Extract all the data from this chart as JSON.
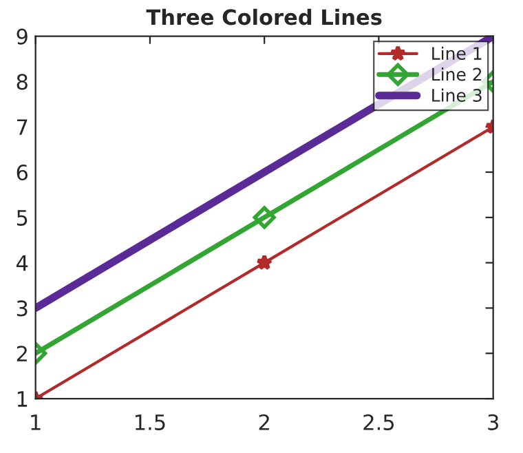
{
  "chart_data": {
    "type": "line",
    "title": "Three Colored Lines",
    "x": [
      1,
      2,
      3
    ],
    "series": [
      {
        "name": "Line 1",
        "color": "#b22a2a",
        "values": [
          1,
          4,
          7
        ],
        "marker": "star"
      },
      {
        "name": "Line 2",
        "color": "#33a533",
        "values": [
          2,
          5,
          8
        ],
        "marker": "diamond"
      },
      {
        "name": "Line 3",
        "color": "#5a2a96",
        "values": [
          3,
          6,
          9
        ],
        "marker": "none"
      }
    ],
    "xlim": [
      1,
      3
    ],
    "xticks": [
      1,
      1.5,
      2,
      2.5,
      3
    ],
    "ylim": [
      1,
      9
    ],
    "yticks": [
      1,
      2,
      3,
      4,
      5,
      6,
      7,
      8,
      9
    ],
    "grid": false,
    "legend": "top right",
    "line_style": "solid"
  }
}
